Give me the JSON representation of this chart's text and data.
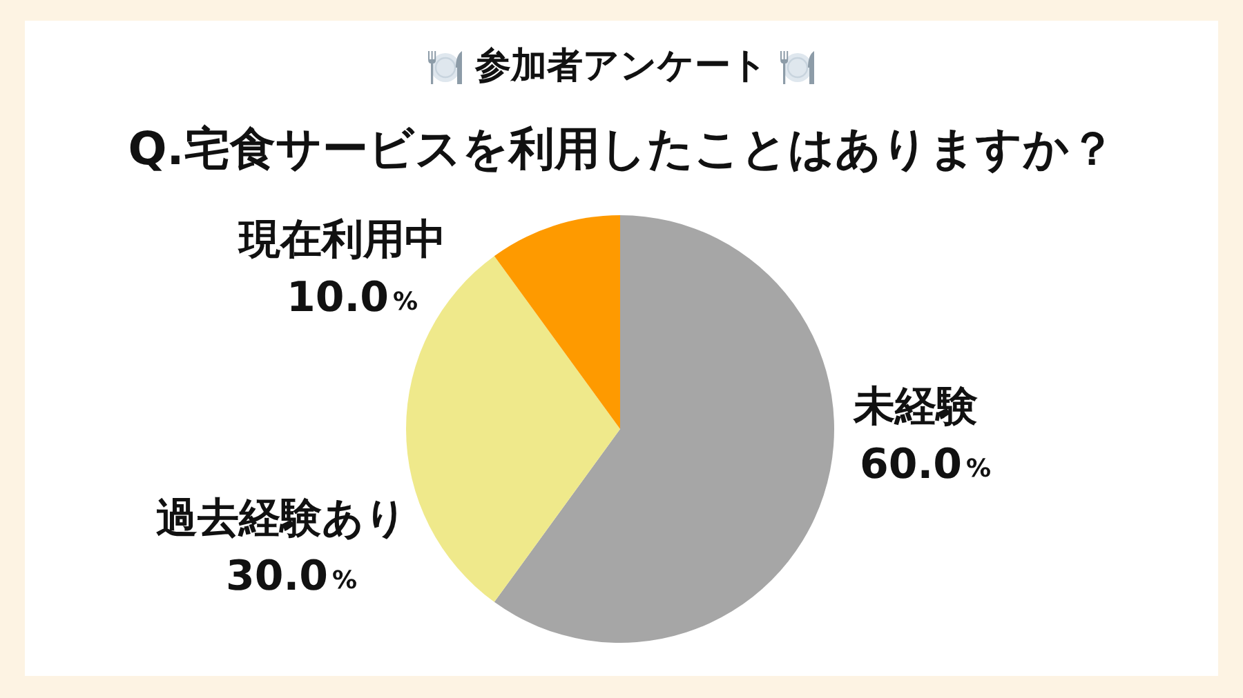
{
  "chart_data": {
    "type": "pie",
    "title": "参加者アンケート",
    "subtitle": "Q.宅食サービスを利用したことはありますか？",
    "categories": [
      "未経験",
      "過去経験あり",
      "現在利用中"
    ],
    "values": [
      60,
      30,
      10
    ],
    "colors": [
      "#a6a6a6",
      "#efe98b",
      "#fe9a00"
    ],
    "value_labels": [
      "60.0%",
      "30.0%",
      "10.0%"
    ]
  }
}
